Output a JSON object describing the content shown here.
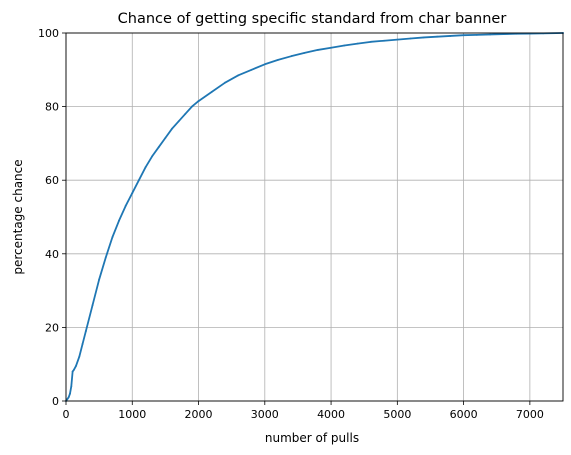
{
  "chart_data": {
    "type": "line",
    "title": "Chance of getting specific standard from char banner",
    "xlabel": "number of pulls",
    "ylabel": "percentage chance",
    "xlim": [
      0,
      7500
    ],
    "ylim": [
      0,
      100
    ],
    "xticks": [
      0,
      1000,
      2000,
      3000,
      4000,
      5000,
      6000,
      7000
    ],
    "yticks": [
      0,
      20,
      40,
      60,
      80,
      100
    ],
    "grid": true,
    "series": [
      {
        "name": "chance",
        "color": "#1f77b4",
        "x": [
          0,
          20,
          40,
          60,
          80,
          100,
          120,
          150,
          200,
          250,
          300,
          400,
          500,
          600,
          700,
          800,
          900,
          1000,
          1100,
          1200,
          1300,
          1400,
          1500,
          1600,
          1700,
          1800,
          1900,
          2000,
          2200,
          2400,
          2600,
          2800,
          3000,
          3200,
          3400,
          3600,
          3800,
          4000,
          4200,
          4400,
          4600,
          4800,
          5000,
          5200,
          5400,
          5600,
          5800,
          6000,
          6200,
          6400,
          6600,
          6800,
          7000,
          7200,
          7500
        ],
        "y": [
          0,
          0.5,
          1,
          2,
          4,
          8,
          8.5,
          9.5,
          12,
          15.5,
          19,
          26,
          33,
          39,
          44.5,
          49,
          53,
          56.5,
          60,
          63.5,
          66.5,
          69,
          71.5,
          74,
          76,
          78,
          80,
          81.5,
          84,
          86.5,
          88.5,
          90,
          91.5,
          92.7,
          93.7,
          94.6,
          95.4,
          96,
          96.6,
          97.1,
          97.6,
          97.9,
          98.2,
          98.5,
          98.8,
          99,
          99.2,
          99.4,
          99.5,
          99.6,
          99.7,
          99.8,
          99.85,
          99.9,
          100
        ]
      }
    ]
  }
}
